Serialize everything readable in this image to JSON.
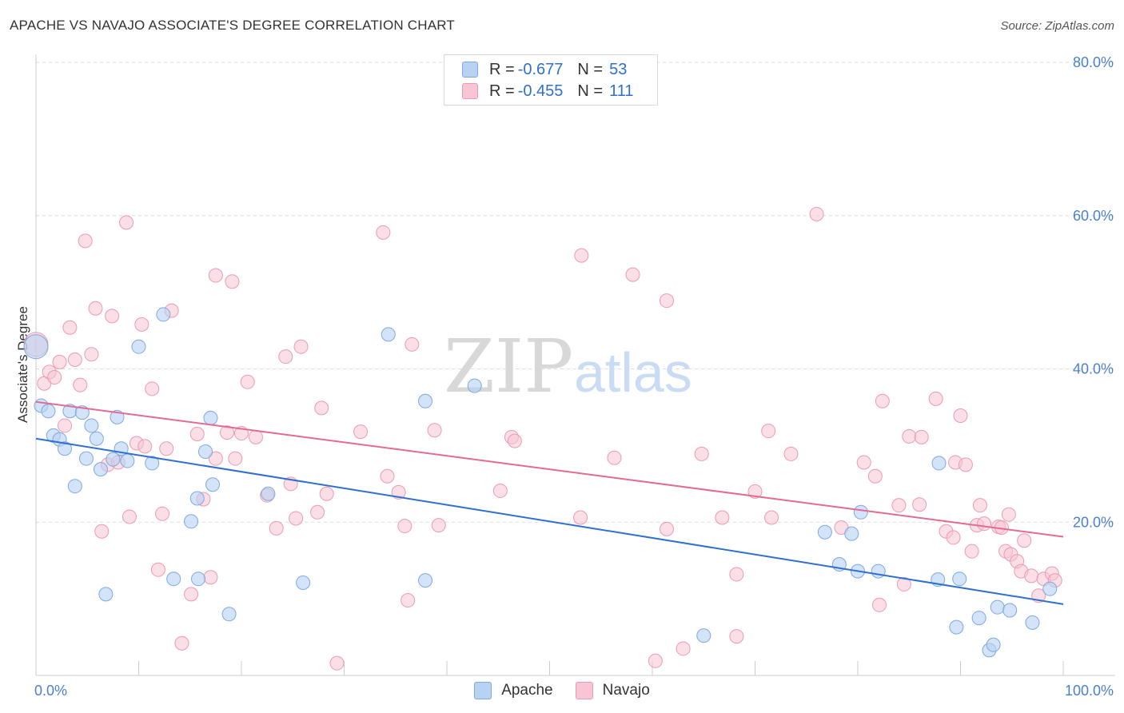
{
  "title": "APACHE VS NAVAJO ASSOCIATE'S DEGREE CORRELATION CHART",
  "source": "Source: ZipAtlas.com",
  "watermark": {
    "zip": "ZIP",
    "atlas": "atlas"
  },
  "colors": {
    "apache_fill": "#b8d2f3",
    "apache_stroke": "#7fa8de",
    "apache_line": "#2f6fd0",
    "navajo_fill": "#f7c5d4",
    "navajo_stroke": "#eb9ab4",
    "navajo_line": "#e36a95",
    "grid": "#dddddd",
    "tick_text": "#4a7fd0"
  },
  "legend": {
    "rows": [
      {
        "r_label": "R =",
        "r_value": "-0.677",
        "n_label": "N =",
        "n_value": "53"
      },
      {
        "r_label": "R =",
        "r_value": "-0.455",
        "n_label": "N =",
        "n_value": "111"
      }
    ]
  },
  "bottom_legend": [
    "Apache",
    "Navajo"
  ],
  "chart_data": {
    "type": "scatter",
    "title": "APACHE VS NAVAJO ASSOCIATE'S DEGREE CORRELATION CHART",
    "xlabel": "",
    "ylabel": "Associate's Degree",
    "xlim": [
      0,
      100
    ],
    "ylim": [
      0,
      80
    ],
    "x_tick_labels": [
      "0.0%",
      "100.0%"
    ],
    "y_ticks": [
      20,
      40,
      60,
      80
    ],
    "y_tick_labels": [
      "20.0%",
      "40.0%",
      "60.0%",
      "80.0%"
    ],
    "series": [
      {
        "name": "Apache",
        "trend": {
          "x0": 0,
          "y0": 30.9,
          "x1": 100,
          "y1": 9.3
        },
        "points": [
          [
            0.5,
            35.2
          ],
          [
            1.2,
            34.5
          ],
          [
            1.7,
            31.3
          ],
          [
            2.3,
            30.8
          ],
          [
            2.8,
            29.6
          ],
          [
            3.3,
            34.5
          ],
          [
            3.8,
            24.7
          ],
          [
            4.5,
            34.3
          ],
          [
            4.9,
            28.3
          ],
          [
            5.4,
            32.6
          ],
          [
            5.9,
            30.9
          ],
          [
            6.3,
            26.9
          ],
          [
            6.8,
            10.6
          ],
          [
            7.5,
            28.2
          ],
          [
            7.9,
            33.7
          ],
          [
            8.3,
            29.6
          ],
          [
            8.9,
            28.0
          ],
          [
            10.0,
            42.9
          ],
          [
            11.3,
            27.7
          ],
          [
            12.4,
            47.1
          ],
          [
            13.4,
            12.6
          ],
          [
            15.1,
            20.1
          ],
          [
            15.7,
            23.1
          ],
          [
            15.8,
            12.6
          ],
          [
            16.5,
            29.2
          ],
          [
            17.0,
            33.6
          ],
          [
            17.2,
            24.9
          ],
          [
            18.8,
            8.0
          ],
          [
            22.6,
            23.7
          ],
          [
            26.0,
            12.1
          ],
          [
            34.3,
            44.5
          ],
          [
            37.9,
            35.8
          ],
          [
            37.9,
            12.4
          ],
          [
            42.7,
            37.8
          ],
          [
            65.0,
            5.2
          ],
          [
            76.8,
            18.7
          ],
          [
            78.2,
            14.5
          ],
          [
            79.4,
            18.5
          ],
          [
            80.0,
            13.6
          ],
          [
            80.3,
            21.3
          ],
          [
            82.0,
            13.6
          ],
          [
            87.8,
            12.5
          ],
          [
            87.9,
            27.7
          ],
          [
            89.6,
            6.3
          ],
          [
            89.9,
            12.6
          ],
          [
            91.8,
            7.5
          ],
          [
            92.8,
            3.3
          ],
          [
            93.2,
            4.0
          ],
          [
            93.6,
            8.9
          ],
          [
            94.8,
            8.5
          ],
          [
            97.0,
            6.9
          ],
          [
            98.7,
            11.3
          ],
          [
            0.0,
            42.9
          ]
        ]
      },
      {
        "name": "Navajo",
        "trend": {
          "x0": 0,
          "y0": 35.7,
          "x1": 100,
          "y1": 18.1
        },
        "points": [
          [
            0.8,
            38.1
          ],
          [
            1.3,
            39.6
          ],
          [
            1.8,
            38.9
          ],
          [
            2.3,
            40.9
          ],
          [
            2.8,
            32.6
          ],
          [
            3.3,
            45.4
          ],
          [
            3.8,
            41.2
          ],
          [
            4.3,
            37.9
          ],
          [
            4.8,
            56.7
          ],
          [
            5.4,
            41.9
          ],
          [
            5.8,
            47.9
          ],
          [
            6.4,
            18.8
          ],
          [
            7.0,
            27.5
          ],
          [
            7.4,
            46.9
          ],
          [
            8.0,
            27.8
          ],
          [
            8.8,
            59.1
          ],
          [
            9.1,
            20.7
          ],
          [
            9.8,
            30.3
          ],
          [
            10.3,
            45.8
          ],
          [
            10.6,
            29.9
          ],
          [
            11.3,
            37.4
          ],
          [
            11.9,
            13.8
          ],
          [
            12.3,
            21.1
          ],
          [
            12.7,
            29.6
          ],
          [
            13.2,
            47.6
          ],
          [
            14.2,
            4.2
          ],
          [
            15.1,
            10.6
          ],
          [
            15.7,
            31.5
          ],
          [
            16.3,
            23.0
          ],
          [
            17.0,
            12.8
          ],
          [
            17.5,
            28.3
          ],
          [
            17.5,
            52.2
          ],
          [
            18.6,
            31.7
          ],
          [
            19.1,
            51.4
          ],
          [
            19.4,
            28.3
          ],
          [
            20.0,
            31.6
          ],
          [
            20.6,
            38.3
          ],
          [
            21.4,
            31.1
          ],
          [
            22.5,
            23.5
          ],
          [
            23.4,
            19.2
          ],
          [
            24.3,
            41.6
          ],
          [
            24.8,
            25.0
          ],
          [
            25.3,
            20.5
          ],
          [
            25.8,
            42.9
          ],
          [
            27.4,
            21.3
          ],
          [
            27.8,
            34.9
          ],
          [
            28.3,
            23.7
          ],
          [
            29.3,
            1.6
          ],
          [
            31.6,
            31.8
          ],
          [
            33.8,
            57.8
          ],
          [
            34.2,
            26.0
          ],
          [
            35.3,
            23.9
          ],
          [
            35.9,
            19.5
          ],
          [
            36.2,
            9.8
          ],
          [
            36.6,
            43.2
          ],
          [
            38.8,
            32.0
          ],
          [
            39.2,
            19.6
          ],
          [
            45.2,
            24.1
          ],
          [
            46.3,
            31.1
          ],
          [
            46.6,
            30.6
          ],
          [
            53.0,
            20.6
          ],
          [
            53.1,
            54.8
          ],
          [
            56.3,
            28.4
          ],
          [
            58.1,
            52.3
          ],
          [
            60.3,
            1.9
          ],
          [
            61.4,
            48.9
          ],
          [
            61.4,
            19.1
          ],
          [
            63.0,
            3.5
          ],
          [
            64.8,
            28.9
          ],
          [
            66.8,
            20.6
          ],
          [
            68.2,
            13.2
          ],
          [
            68.2,
            5.1
          ],
          [
            70.0,
            24.0
          ],
          [
            71.3,
            31.9
          ],
          [
            71.6,
            20.6
          ],
          [
            73.5,
            28.9
          ],
          [
            76.0,
            60.2
          ],
          [
            78.4,
            19.3
          ],
          [
            80.6,
            27.8
          ],
          [
            81.7,
            26.0
          ],
          [
            82.1,
            9.2
          ],
          [
            82.4,
            35.8
          ],
          [
            84.0,
            22.2
          ],
          [
            84.5,
            11.9
          ],
          [
            85.0,
            31.2
          ],
          [
            86.0,
            22.3
          ],
          [
            86.2,
            31.1
          ],
          [
            87.6,
            36.1
          ],
          [
            88.6,
            18.8
          ],
          [
            89.3,
            18.0
          ],
          [
            89.5,
            27.8
          ],
          [
            90.0,
            33.9
          ],
          [
            90.5,
            27.5
          ],
          [
            91.1,
            16.2
          ],
          [
            91.6,
            19.6
          ],
          [
            91.9,
            22.2
          ],
          [
            92.3,
            19.8
          ],
          [
            93.7,
            19.4
          ],
          [
            94.0,
            19.3
          ],
          [
            94.4,
            16.2
          ],
          [
            94.7,
            21.0
          ],
          [
            94.9,
            15.8
          ],
          [
            95.5,
            14.9
          ],
          [
            95.9,
            13.6
          ],
          [
            96.2,
            17.6
          ],
          [
            96.9,
            13.0
          ],
          [
            97.6,
            10.4
          ],
          [
            98.1,
            12.6
          ],
          [
            98.9,
            13.3
          ],
          [
            99.2,
            12.4
          ],
          [
            0.0,
            43.2
          ]
        ]
      }
    ]
  }
}
